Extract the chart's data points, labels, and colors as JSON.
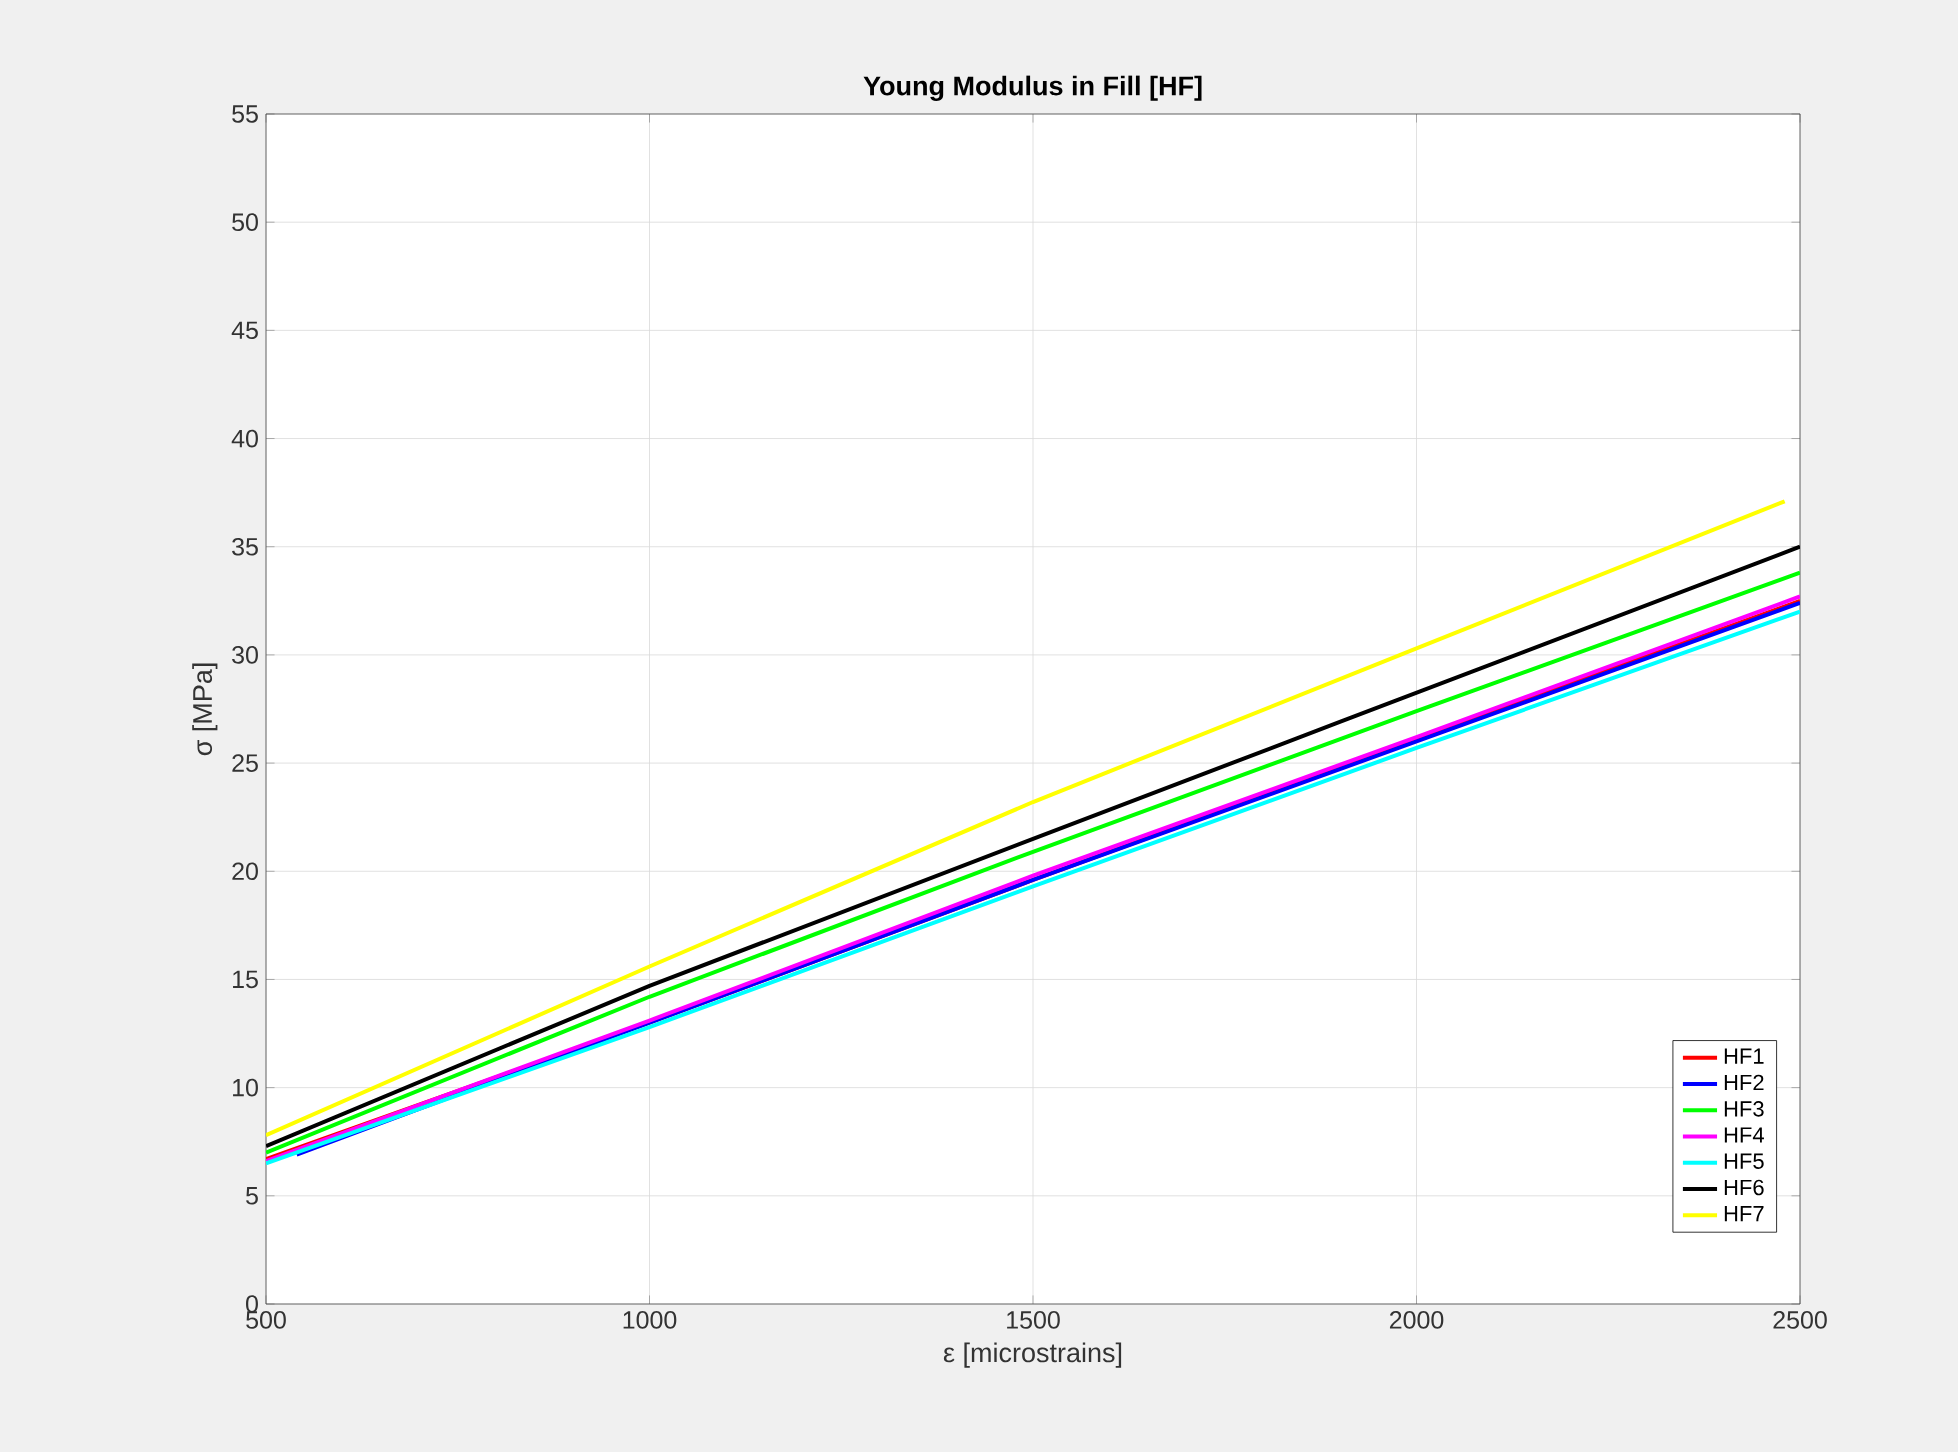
{
  "chart_data": {
    "type": "line",
    "title": "Young Modulus in Fill [HF]",
    "xlabel": "ε [microstrains]",
    "ylabel": "σ [MPa]",
    "xlim": [
      500,
      2500
    ],
    "ylim": [
      0,
      55
    ],
    "xticks": [
      500,
      1000,
      1500,
      2000,
      2500
    ],
    "yticks": [
      0,
      5,
      10,
      15,
      20,
      25,
      30,
      35,
      40,
      45,
      50,
      55
    ],
    "grid": true,
    "legend": "bottom right",
    "marker": "none",
    "line_style": "solid",
    "series": [
      {
        "name": "HF1",
        "color": "#ff0000",
        "x": [
          500,
          1000,
          1500,
          2000,
          2500
        ],
        "values": [
          6.7,
          13.0,
          19.6,
          26.1,
          32.5
        ]
      },
      {
        "name": "HF2",
        "color": "#0000ff",
        "x": [
          540,
          1000,
          1500,
          2000,
          2500
        ],
        "values": [
          6.9,
          13.0,
          19.6,
          26.0,
          32.4
        ]
      },
      {
        "name": "HF3",
        "color": "#00ff00",
        "x": [
          500,
          1000,
          1500,
          2000,
          2500
        ],
        "values": [
          7.0,
          14.2,
          20.9,
          27.4,
          33.8
        ]
      },
      {
        "name": "HF4",
        "color": "#ff00ff",
        "x": [
          500,
          1000,
          1500,
          2000,
          2500
        ],
        "values": [
          6.6,
          13.1,
          19.8,
          26.2,
          32.7
        ]
      },
      {
        "name": "HF5",
        "color": "#00ffff",
        "x": [
          500,
          1000,
          1500,
          2000,
          2500
        ],
        "values": [
          6.5,
          12.8,
          19.3,
          25.7,
          32.0
        ]
      },
      {
        "name": "HF6",
        "color": "#000000",
        "x": [
          500,
          1000,
          1500,
          1900,
          2500
        ],
        "values": [
          7.3,
          14.7,
          21.5,
          26.9,
          35.0
        ]
      },
      {
        "name": "HF7",
        "color": "#ffff00",
        "x": [
          500,
          1000,
          1500,
          2000,
          2480
        ],
        "values": [
          7.8,
          15.6,
          23.2,
          30.3,
          37.1
        ]
      }
    ]
  }
}
